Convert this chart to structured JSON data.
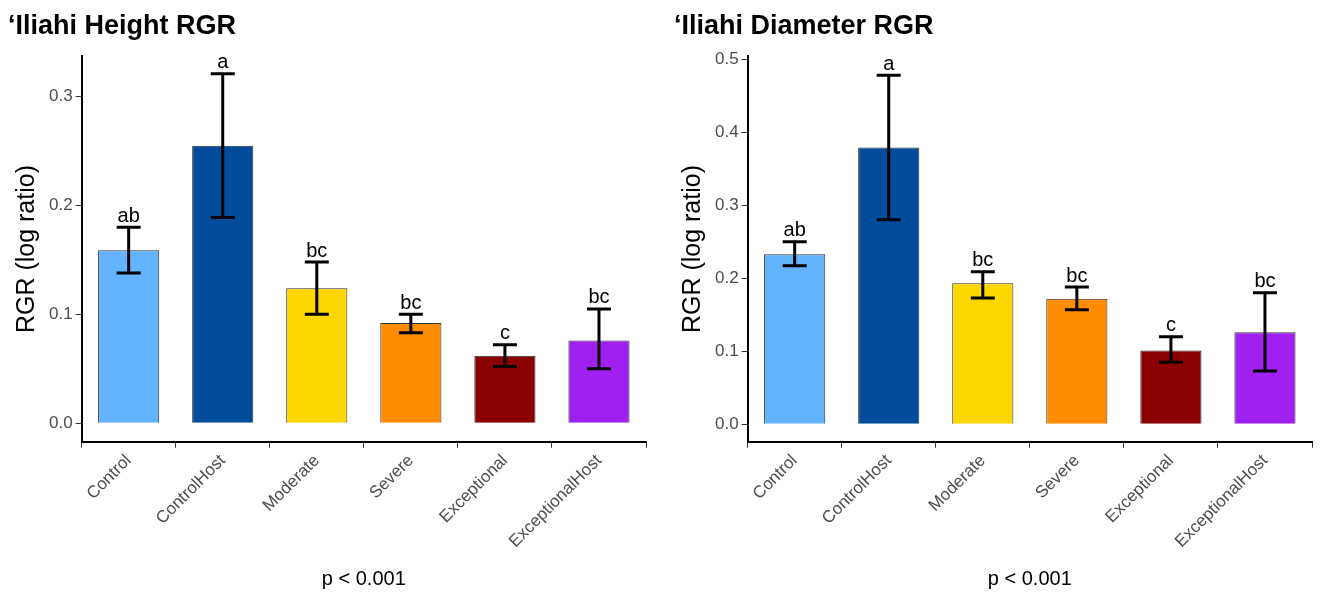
{
  "chart_data": [
    {
      "type": "bar",
      "title": "‘Iliahi Height RGR",
      "xlabel": "p < 0.001",
      "ylabel": "RGR (log ratio)",
      "categories": [
        "Control",
        "ControlHost",
        "Moderate",
        "Severe",
        "Exceptional",
        "ExceptionalHost"
      ],
      "values": [
        0.159,
        0.255,
        0.124,
        0.092,
        0.062,
        0.076
      ],
      "colors": [
        "#63b3ff",
        "#034c9c",
        "#ffd700",
        "#ff8c00",
        "#8b0000",
        "#a020f0"
      ],
      "errors": [
        [
          0.138,
          0.18
        ],
        [
          0.189,
          0.321
        ],
        [
          0.1,
          0.148
        ],
        [
          0.083,
          0.1
        ],
        [
          0.052,
          0.072
        ],
        [
          0.05,
          0.105
        ]
      ],
      "ylim": [
        -0.017,
        0.337
      ],
      "yticks": [
        {
          "value": 0,
          "label": "0.0"
        },
        0.1,
        0.2,
        0.3
      ],
      "grid": false,
      "legend": false,
      "annotations": [
        {
          "text": "ab",
          "x": "Control",
          "y": 0.18
        },
        {
          "text": "a",
          "x": "ControlHost",
          "y": 0.321
        },
        {
          "text": "bc",
          "x": "Moderate",
          "y": 0.148
        },
        {
          "text": "bc",
          "x": "Severe",
          "y": 0.1
        },
        {
          "text": "c",
          "x": "Exceptional",
          "y": 0.072
        },
        {
          "text": "bc",
          "x": "ExceptionalHost",
          "y": 0.105
        }
      ]
    },
    {
      "type": "bar",
      "title": "‘Iliahi Diameter RGR",
      "xlabel": "p < 0.001",
      "ylabel": "RGR (log ratio)",
      "categories": [
        "Control",
        "ControlHost",
        "Moderate",
        "Severe",
        "Exceptional",
        "ExceptionalHost"
      ],
      "values": [
        0.233,
        0.379,
        0.193,
        0.172,
        0.101,
        0.126
      ],
      "colors": [
        "#63b3ff",
        "#034c9c",
        "#ffd700",
        "#ff8c00",
        "#8b0000",
        "#a020f0"
      ],
      "errors": [
        [
          0.217,
          0.25
        ],
        [
          0.28,
          0.478
        ],
        [
          0.173,
          0.209
        ],
        [
          0.157,
          0.188
        ],
        [
          0.085,
          0.12
        ],
        [
          0.073,
          0.18
        ]
      ],
      "ylim": [
        -0.024,
        0.504
      ],
      "yticks": [
        {
          "value": 0,
          "label": "0.0"
        },
        0.1,
        0.2,
        0.3,
        0.4,
        0.5
      ],
      "grid": false,
      "legend": false,
      "annotations": [
        {
          "text": "ab",
          "x": "Control",
          "y": 0.25
        },
        {
          "text": "a",
          "x": "ControlHost",
          "y": 0.478
        },
        {
          "text": "bc",
          "x": "Moderate",
          "y": 0.209
        },
        {
          "text": "bc",
          "x": "Severe",
          "y": 0.188
        },
        {
          "text": "c",
          "x": "Exceptional",
          "y": 0.12
        },
        {
          "text": "bc",
          "x": "ExceptionalHost",
          "y": 0.18
        }
      ]
    }
  ]
}
